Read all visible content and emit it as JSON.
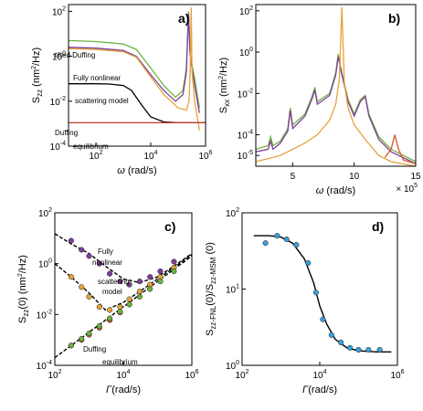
{
  "chart_data": [
    {
      "panel_label": "a)",
      "type": "line",
      "xscale": "log",
      "yscale": "log",
      "xlim": [
        10,
        1000000
      ],
      "ylim": [
        0.0001,
        200
      ],
      "xticks": [
        100,
        10000,
        1000000
      ],
      "xtick_labels": [
        "10",
        "10",
        "10"
      ],
      "xtick_exps": [
        "2",
        "4",
        "6"
      ],
      "yticks": [
        0.0001,
        0.01,
        1,
        100
      ],
      "ytick_labels": [
        "10",
        "10",
        "10",
        "10"
      ],
      "ytick_exps": [
        "-4",
        "-2",
        "0",
        "2"
      ],
      "xlabel_main": "ω",
      "xlabel_unit": " (rad/s)",
      "ylabel_main": "S",
      "ylabel_sub": "zz",
      "ylabel_unit": " (nm",
      "ylabel_sup": "2",
      "ylabel_end": "/Hz)",
      "annotations": [
        "tilted Duffing",
        "Fully nonlinear",
        "scattering model",
        "Duffing",
        "equilibrium"
      ],
      "series": [
        {
          "color": "#6cb33f",
          "x": [
            10,
            100,
            1000,
            3000,
            10000,
            30000,
            80000,
            150000,
            200000,
            220000,
            240000,
            270000,
            300000,
            400000,
            600000
          ],
          "y": [
            5,
            4.5,
            3.5,
            2,
            0.3,
            0.05,
            0.015,
            0.03,
            0.3,
            8,
            100,
            2,
            0.6,
            0.1,
            0.005
          ]
        },
        {
          "color": "#7d3f98",
          "x": [
            10,
            100,
            1000,
            3000,
            10000,
            30000,
            80000,
            150000,
            200000,
            220000,
            240000,
            270000,
            300000,
            400000,
            600000
          ],
          "y": [
            2.5,
            2.3,
            1.8,
            1.0,
            0.15,
            0.03,
            0.01,
            0.02,
            0.2,
            6,
            80,
            1.5,
            0.5,
            0.05,
            0.003
          ]
        },
        {
          "color": "#e6a23c",
          "x": [
            10,
            100,
            1000,
            3000,
            10000,
            30000,
            100000,
            200000,
            250000,
            280000,
            300000,
            320000,
            400000,
            600000
          ],
          "y": [
            2.2,
            2.0,
            1.6,
            0.9,
            0.12,
            0.02,
            0.005,
            0.004,
            0.01,
            0.5,
            150,
            0.2,
            0.01,
            0.0005
          ]
        },
        {
          "color": "#000000",
          "x": [
            10,
            100,
            300,
            1000,
            2000,
            5000,
            10000,
            30000,
            100000,
            300000,
            1000000
          ],
          "y": [
            0.06,
            0.06,
            0.058,
            0.05,
            0.03,
            0.006,
            0.002,
            0.0012,
            0.0011,
            0.0011,
            0.0011
          ]
        },
        {
          "color": "#c0392b",
          "x": [
            10,
            100,
            1000,
            10000,
            100000,
            300000,
            1000000
          ],
          "y": [
            0.0011,
            0.0011,
            0.0011,
            0.0011,
            0.0011,
            0.0011,
            0.0011
          ]
        }
      ]
    },
    {
      "panel_label": "b)",
      "type": "line",
      "xscale": "linear",
      "yscale": "log",
      "xlim": [
        2,
        15
      ],
      "ylim": [
        3e-06,
        200
      ],
      "xticks": [
        5,
        10,
        15
      ],
      "xtick_labels": [
        "5",
        "10",
        "15"
      ],
      "x_multiplier": "× 10",
      "x_multiplier_exp": "5",
      "yticks": [
        1e-05,
        0.0001,
        0.01,
        1,
        100
      ],
      "ytick_labels": [
        "10",
        "10",
        "10",
        "10",
        "10"
      ],
      "ytick_exps": [
        "-5",
        "-4",
        "-2",
        "0",
        "2"
      ],
      "xlabel_main": "ω",
      "xlabel_unit": " (rad/s)",
      "ylabel_main": "S",
      "ylabel_sub": "xx",
      "ylabel_unit": " (nm",
      "ylabel_sup": "2",
      "ylabel_end": "/Hz)",
      "series": [
        {
          "color": "#6cb33f",
          "x": [
            2,
            3,
            3.2,
            3.4,
            4,
            4.6,
            4.8,
            5,
            6,
            6.6,
            6.8,
            7,
            8,
            8.5,
            8.7,
            9,
            9.5,
            10,
            10.5,
            10.9,
            11.2,
            12,
            13,
            15
          ],
          "y": [
            2e-05,
            3e-05,
            8e-05,
            3e-05,
            5e-05,
            0.0002,
            0.002,
            0.0003,
            0.001,
            0.008,
            0.02,
            0.004,
            0.01,
            0.1,
            0.8,
            0.1,
            0.005,
            0.001,
            0.005,
            0.008,
            0.001,
            8e-05,
            2e-05,
            5e-06
          ]
        },
        {
          "color": "#7d3f98",
          "x": [
            2,
            3,
            3.2,
            3.4,
            4,
            4.6,
            4.8,
            5,
            6,
            6.6,
            6.8,
            7,
            8,
            8.5,
            8.7,
            9,
            9.5,
            10,
            10.5,
            10.9,
            11.2,
            12,
            13,
            15
          ],
          "y": [
            1.5e-05,
            2e-05,
            5e-05,
            2e-05,
            4e-05,
            0.00015,
            0.0015,
            0.0002,
            0.0008,
            0.006,
            0.015,
            0.003,
            0.008,
            0.08,
            0.6,
            0.08,
            0.004,
            0.0008,
            0.004,
            0.007,
            0.0008,
            6e-05,
            1.5e-05,
            4e-06
          ]
        },
        {
          "color": "#e6a23c",
          "x": [
            2,
            4,
            6,
            7,
            8,
            8.5,
            8.8,
            9,
            9.2,
            9.5,
            10,
            11,
            12,
            13,
            15
          ],
          "y": [
            5e-06,
            1e-05,
            4e-05,
            0.0001,
            0.0005,
            0.003,
            0.05,
            150,
            0.03,
            0.002,
            0.0003,
            5e-05,
            1e-05,
            5e-06,
            3e-06
          ]
        },
        {
          "color": "#d9552b",
          "x": [
            12.5,
            13,
            13.3,
            13.6,
            14,
            15
          ],
          "y": [
            8e-06,
            2e-05,
            0.0001,
            2e-05,
            6e-06,
            4e-06
          ]
        }
      ]
    },
    {
      "panel_label": "c)",
      "type": "scatter",
      "xscale": "log",
      "yscale": "log",
      "xlim": [
        100,
        1000000
      ],
      "ylim": [
        0.0001,
        100
      ],
      "xticks": [
        100,
        10000,
        1000000
      ],
      "xtick_labels": [
        "10",
        "10",
        "10"
      ],
      "xtick_exps": [
        "2",
        "4",
        "6"
      ],
      "yticks": [
        0.0001,
        0.01,
        1,
        100
      ],
      "ytick_labels": [
        "10",
        "10",
        "10",
        "10"
      ],
      "ytick_exps": [
        "-4",
        "-2",
        "0",
        "2"
      ],
      "xlabel_main": "Γ",
      "xlabel_unit": "(rad/s)",
      "ylabel_main": "S",
      "ylabel_sub": "zz",
      "ylabel_unit": "(0) (nm",
      "ylabel_sup": "2",
      "ylabel_end": "/Hz)",
      "annotations": [
        "Fully",
        "nonlinear",
        "scattering",
        "model",
        "Duffing",
        "equilibrium"
      ],
      "series": [
        {
          "color": "#7d3f98",
          "x": [
            300,
            600,
            1000,
            2000,
            4000,
            8000,
            15000,
            30000,
            60000,
            120000,
            300000
          ],
          "y": [
            8,
            3.5,
            2,
            1,
            0.4,
            0.2,
            0.15,
            0.2,
            0.3,
            0.5,
            1.2
          ]
        },
        {
          "color": "#e6a23c",
          "x": [
            300,
            600,
            1000,
            2000,
            4000,
            8000,
            15000,
            30000,
            60000,
            120000,
            300000
          ],
          "y": [
            0.3,
            0.12,
            0.05,
            0.02,
            0.015,
            0.02,
            0.04,
            0.08,
            0.15,
            0.3,
            0.7
          ]
        },
        {
          "color": "#d9552b",
          "x": [
            300,
            600,
            1000,
            2000,
            4000,
            8000,
            15000
          ],
          "y": [
            0.0006,
            0.001,
            0.0016,
            0.003,
            0.006,
            0.012,
            0.025
          ]
        },
        {
          "color": "#6cb33f",
          "x": [
            300,
            600,
            1000,
            2000,
            4000,
            8000,
            15000,
            30000,
            60000,
            120000,
            300000
          ],
          "y": [
            0.0006,
            0.0011,
            0.0018,
            0.0035,
            0.007,
            0.013,
            0.025,
            0.05,
            0.1,
            0.2,
            0.5
          ]
        }
      ],
      "fit_lines": [
        {
          "color": "#000000",
          "x": [
            100,
            300,
            1000,
            3000,
            10000,
            30000,
            100000,
            300000,
            1000000
          ],
          "y": [
            15,
            6,
            2.5,
            0.8,
            0.25,
            0.18,
            0.3,
            0.8,
            2.5
          ]
        },
        {
          "color": "#000000",
          "x": [
            100,
            300,
            1000,
            3000,
            10000,
            30000,
            100000,
            300000,
            1000000
          ],
          "y": [
            1,
            0.3,
            0.07,
            0.015,
            0.03,
            0.08,
            0.25,
            0.7,
            2.3
          ]
        },
        {
          "color": "#000000",
          "x": [
            100,
            1000000
          ],
          "y": [
            0.0002,
            2
          ]
        }
      ]
    },
    {
      "panel_label": "d)",
      "type": "scatter",
      "xscale": "log",
      "yscale": "log",
      "xlim": [
        100,
        1000000
      ],
      "ylim": [
        1,
        100
      ],
      "xticks": [
        100,
        10000,
        1000000
      ],
      "xtick_labels": [
        "10",
        "10",
        "10"
      ],
      "xtick_exps": [
        "2",
        "4",
        "6"
      ],
      "yticks": [
        1,
        10,
        100
      ],
      "ytick_labels": [
        "10",
        "10",
        "10"
      ],
      "ytick_exps": [
        "0",
        "1",
        "2"
      ],
      "xlabel_main": "Γ",
      "xlabel_unit": "(rad/s)",
      "ylabel_main": "S",
      "ylabel_sub": "zz-FNL",
      "ylabel_mid": "(0)/S",
      "ylabel_sub2": "zz-MSM",
      "ylabel_end": " (0)",
      "series": [
        {
          "color": "#3aa0d8",
          "x": [
            400,
            800,
            1400,
            2500,
            5000,
            8000,
            12000,
            20000,
            35000,
            60000,
            100000,
            180000,
            350000
          ],
          "y": [
            40,
            50,
            45,
            38,
            22,
            9,
            4,
            2.5,
            2,
            1.7,
            1.6,
            1.6,
            1.6
          ]
        }
      ],
      "fit_lines": [
        {
          "color": "#000000",
          "x": [
            200,
            500,
            1000,
            2000,
            4000,
            7000,
            10000,
            15000,
            25000,
            50000,
            100000,
            300000,
            700000
          ],
          "y": [
            50,
            50,
            48,
            40,
            25,
            12,
            6,
            3.5,
            2.2,
            1.7,
            1.55,
            1.5,
            1.5
          ]
        }
      ]
    }
  ]
}
